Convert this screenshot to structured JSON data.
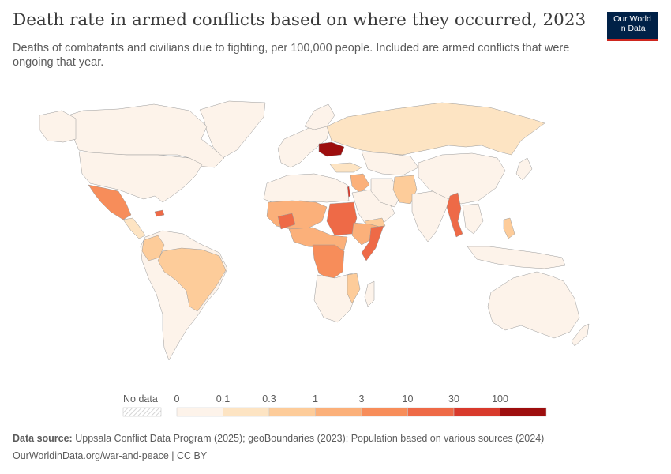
{
  "header": {
    "title": "Death rate in armed conflicts based on where they occurred, 2023",
    "subtitle": "Deaths of combatants and civilians due to fighting, per 100,000 people. Included are armed conflicts that were ongoing that year."
  },
  "logo": {
    "line1": "Our World",
    "line2": "in Data"
  },
  "legend": {
    "no_data_label": "No data",
    "ticks": [
      "0",
      "0.1",
      "0.3",
      "1",
      "3",
      "10",
      "30",
      "100"
    ],
    "colors": [
      "#fdf3ea",
      "#fde4c3",
      "#fdcc9a",
      "#fbb07a",
      "#f78d5a",
      "#ee6a47",
      "#d83a2c",
      "#9d0e0e"
    ]
  },
  "footer": {
    "source_label": "Data source:",
    "source_text": "Uppsala Conflict Data Program (2025); geoBoundaries (2023); Population based on various sources (2024)",
    "url_text": "OurWorldinData.org/war-and-peace | CC BY"
  }
}
